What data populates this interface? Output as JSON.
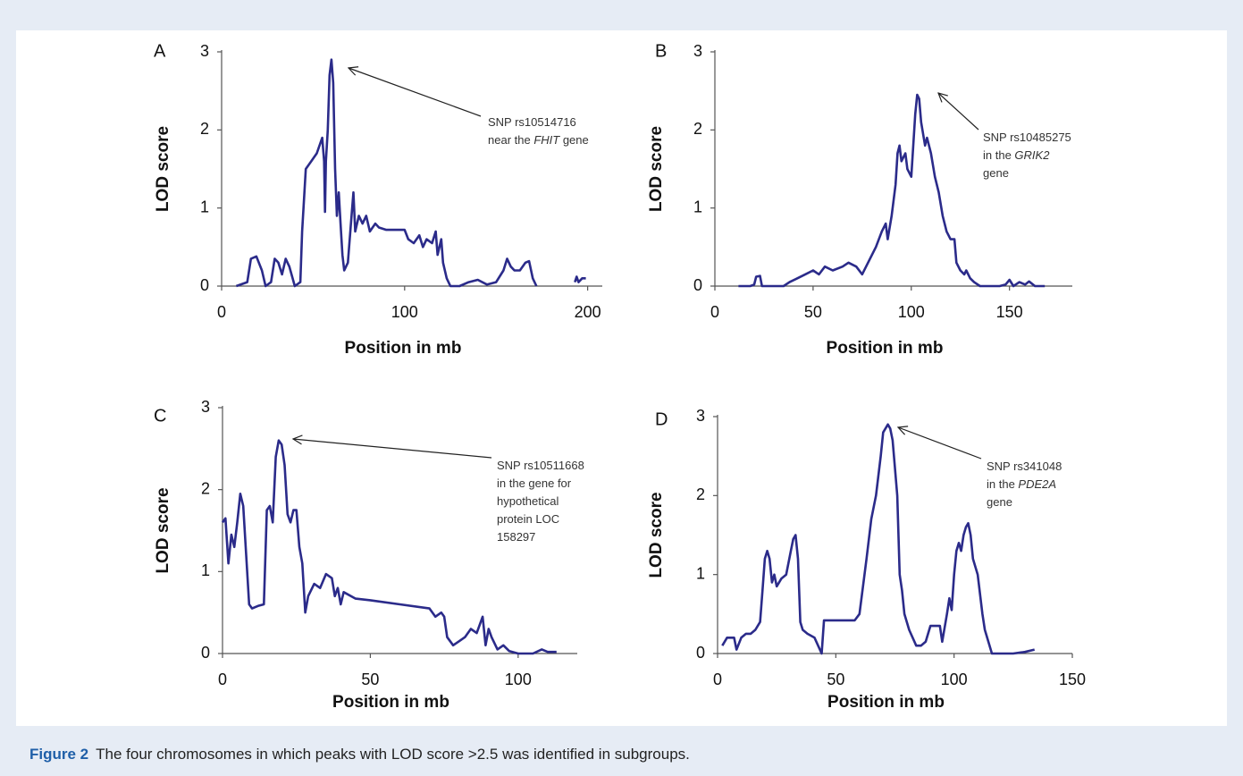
{
  "figure_label": "Figure 2",
  "caption": "The four chromosomes in which peaks with LOD score >2.5 was identified in subgroups.",
  "chart_data": [
    {
      "type": "line",
      "panel": "A",
      "xlabel": "Position in mb",
      "ylabel": "LOD score",
      "color": "#2b2b8a",
      "annotation": [
        [
          "SNP rs10514716"
        ],
        [
          "near the ",
          "FHIT",
          " gene"
        ]
      ],
      "xlim": [
        0,
        208
      ],
      "xticks": [
        0,
        100,
        200
      ],
      "ylim": [
        0,
        3
      ],
      "yticks": [
        0,
        1,
        2,
        3
      ],
      "x": [
        8,
        14,
        16,
        19,
        22,
        24,
        27,
        29,
        31,
        33,
        35,
        37,
        40,
        43,
        44,
        46,
        49,
        52,
        55,
        56,
        56.5,
        57,
        58,
        59,
        60,
        61,
        62,
        63,
        64,
        65,
        66,
        67,
        69,
        71,
        72,
        73,
        75,
        77,
        79,
        81,
        84,
        86,
        90,
        100,
        102,
        105,
        108,
        110,
        112,
        115,
        117,
        118,
        120,
        121,
        123,
        125,
        130,
        135,
        140,
        145,
        150,
        154,
        156,
        158,
        160,
        163,
        166,
        168,
        170,
        172,
        183,
        193,
        194,
        195,
        197,
        199
      ],
      "values": [
        0,
        0.05,
        0.35,
        0.38,
        0.2,
        0,
        0.05,
        0.35,
        0.3,
        0.15,
        0.35,
        0.25,
        0,
        0.05,
        0.7,
        1.5,
        1.6,
        1.7,
        1.9,
        1.6,
        0.95,
        1.6,
        2.0,
        2.7,
        2.9,
        2.6,
        1.5,
        0.9,
        1.2,
        0.8,
        0.4,
        0.2,
        0.3,
        0.9,
        1.2,
        0.7,
        0.9,
        0.8,
        0.9,
        0.7,
        0.8,
        0.75,
        0.72,
        0.72,
        0.6,
        0.55,
        0.65,
        0.5,
        0.6,
        0.55,
        0.7,
        0.4,
        0.6,
        0.3,
        0.1,
        0,
        0,
        0.05,
        0.08,
        0.02,
        0.05,
        0.2,
        0.35,
        0.25,
        0.2,
        0.2,
        0.3,
        0.32,
        0.1,
        0,
        null,
        0.05,
        0.12,
        0.05,
        0.1,
        0.1
      ]
    },
    {
      "type": "line",
      "panel": "B",
      "xlabel": "Position in mb",
      "ylabel": "LOD score",
      "color": "#2b2b8a",
      "annotation": [
        [
          "SNP rs10485275"
        ],
        [
          "in the ",
          "GRIK2"
        ],
        [
          "gene"
        ]
      ],
      "xlim": [
        0,
        182
      ],
      "xticks": [
        0,
        50,
        100,
        150
      ],
      "ylim": [
        0,
        3
      ],
      "yticks": [
        0,
        1,
        2,
        3
      ],
      "x": [
        12,
        18,
        20,
        21,
        23,
        24,
        27,
        35,
        38,
        42,
        46,
        50,
        53,
        56,
        60,
        65,
        68,
        72,
        75,
        78,
        82,
        85,
        87,
        88,
        90,
        92,
        93,
        94,
        95,
        97,
        98,
        100,
        101,
        102,
        103,
        104,
        105,
        107,
        108,
        110,
        112,
        114,
        116,
        118,
        120,
        122,
        123,
        125,
        127,
        128,
        130,
        132,
        135,
        140,
        145,
        148,
        150,
        152,
        155,
        158,
        160,
        163,
        168
      ],
      "values": [
        0,
        0,
        0.02,
        0.12,
        0.13,
        0,
        0,
        0,
        0.05,
        0.1,
        0.15,
        0.2,
        0.15,
        0.25,
        0.2,
        0.25,
        0.3,
        0.25,
        0.15,
        0.3,
        0.5,
        0.7,
        0.8,
        0.6,
        0.9,
        1.3,
        1.7,
        1.8,
        1.6,
        1.7,
        1.5,
        1.4,
        1.8,
        2.2,
        2.45,
        2.4,
        2.1,
        1.8,
        1.9,
        1.7,
        1.4,
        1.2,
        0.9,
        0.7,
        0.6,
        0.6,
        0.3,
        0.2,
        0.15,
        0.2,
        0.1,
        0.05,
        0,
        0,
        0,
        0.02,
        0.08,
        0,
        0.05,
        0.02,
        0.06,
        0,
        0
      ]
    },
    {
      "type": "line",
      "panel": "C",
      "xlabel": "Position in mb",
      "ylabel": "LOD score",
      "color": "#2b2b8a",
      "annotation": [
        [
          "SNP rs10511668"
        ],
        [
          "in the gene for"
        ],
        [
          "hypothetical"
        ],
        [
          "protein LOC"
        ],
        [
          "158297"
        ]
      ],
      "xlim": [
        0,
        120
      ],
      "xticks": [
        0,
        50,
        100
      ],
      "ylim": [
        0,
        3
      ],
      "yticks": [
        0,
        1,
        2,
        3
      ],
      "x": [
        0,
        1,
        2,
        3,
        4,
        5,
        6,
        7,
        8,
        9,
        10,
        12,
        14,
        15,
        16,
        17,
        18,
        19,
        20,
        21,
        22,
        23,
        24,
        25,
        26,
        27,
        28,
        29,
        31,
        33,
        35,
        37,
        38,
        39,
        40,
        41,
        45,
        50,
        60,
        70,
        72,
        74,
        75,
        76,
        78,
        80,
        82,
        84,
        86,
        87,
        88,
        89,
        90,
        91,
        93,
        95,
        97,
        100,
        105,
        108,
        110,
        113
      ],
      "values": [
        1.6,
        1.65,
        1.1,
        1.45,
        1.3,
        1.6,
        1.95,
        1.8,
        1.2,
        0.6,
        0.55,
        0.58,
        0.6,
        1.75,
        1.8,
        1.6,
        2.4,
        2.6,
        2.55,
        2.3,
        1.7,
        1.6,
        1.75,
        1.75,
        1.3,
        1.1,
        0.5,
        0.7,
        0.85,
        0.8,
        0.97,
        0.92,
        0.7,
        0.8,
        0.6,
        0.75,
        0.67,
        0.65,
        0.6,
        0.55,
        0.45,
        0.5,
        0.45,
        0.2,
        0.1,
        0.15,
        0.2,
        0.3,
        0.25,
        0.35,
        0.45,
        0.1,
        0.3,
        0.2,
        0.05,
        0.1,
        0.03,
        0,
        0,
        0.05,
        0.02,
        0.02
      ]
    },
    {
      "type": "line",
      "panel": "D",
      "xlabel": "Position in mb",
      "ylabel": "LOD score",
      "color": "#2b2b8a",
      "annotation": [
        [
          "SNP rs341048"
        ],
        [
          "in the ",
          "PDE2A"
        ],
        [
          "gene"
        ]
      ],
      "xlim": [
        0,
        150
      ],
      "xticks": [
        0,
        50,
        100,
        150
      ],
      "ylim": [
        0,
        3
      ],
      "yticks": [
        0,
        1,
        2,
        3
      ],
      "x": [
        2,
        4,
        7,
        8,
        10,
        12,
        14,
        16,
        18,
        19,
        20,
        21,
        22,
        23,
        24,
        25,
        27,
        29,
        31,
        32,
        33,
        34,
        35,
        36,
        38,
        41,
        44,
        45,
        50,
        58,
        60,
        63,
        65,
        67,
        69,
        70,
        72,
        73,
        74,
        76,
        77,
        78,
        79,
        81,
        84,
        86,
        88,
        90,
        92,
        94,
        95,
        97,
        98,
        99,
        100,
        101,
        102,
        103,
        104,
        105,
        106,
        107,
        108,
        110,
        112,
        113,
        115,
        116,
        120,
        125,
        130,
        134
      ],
      "values": [
        0.1,
        0.2,
        0.2,
        0.05,
        0.2,
        0.25,
        0.25,
        0.3,
        0.4,
        0.8,
        1.2,
        1.3,
        1.2,
        0.9,
        1.0,
        0.85,
        0.95,
        1.0,
        1.3,
        1.45,
        1.5,
        1.2,
        0.4,
        0.3,
        0.25,
        0.2,
        0,
        0.42,
        0.42,
        0.42,
        0.5,
        1.2,
        1.7,
        2.0,
        2.5,
        2.8,
        2.9,
        2.85,
        2.7,
        2.0,
        1.0,
        0.8,
        0.5,
        0.3,
        0.1,
        0.1,
        0.15,
        0.35,
        0.35,
        0.35,
        0.15,
        0.5,
        0.7,
        0.55,
        1.0,
        1.3,
        1.4,
        1.3,
        1.5,
        1.6,
        1.65,
        1.5,
        1.2,
        1.0,
        0.5,
        0.3,
        0.1,
        0,
        0,
        0,
        0.02,
        0.05
      ]
    }
  ]
}
